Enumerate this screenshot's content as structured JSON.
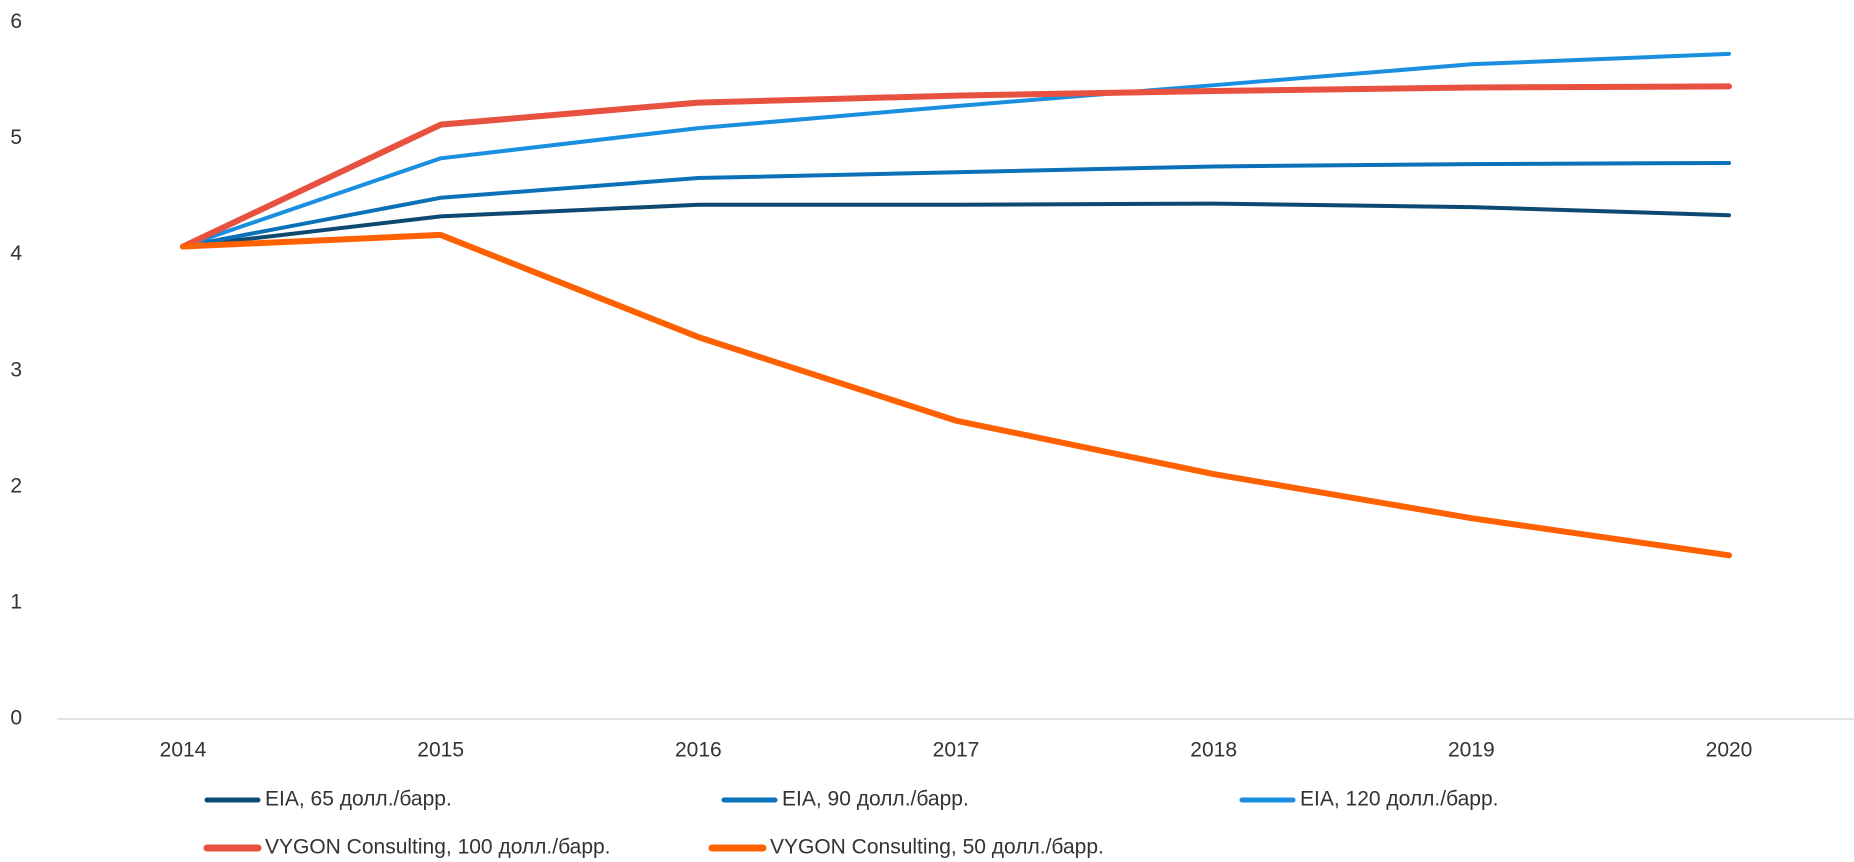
{
  "chart_data": {
    "type": "line",
    "categories": [
      "2014",
      "2015",
      "2016",
      "2017",
      "2018",
      "2019",
      "2020"
    ],
    "series": [
      {
        "name": "EIA, 65 долл./барр.",
        "color": "#0d4a72",
        "width": 4,
        "values": [
          4.07,
          4.33,
          4.43,
          4.43,
          4.44,
          4.41,
          4.34
        ]
      },
      {
        "name": "EIA, 90 долл./барр.",
        "color": "#0a70b8",
        "width": 4,
        "values": [
          4.07,
          4.49,
          4.66,
          4.71,
          4.76,
          4.78,
          4.79
        ]
      },
      {
        "name": "EIA, 120 долл./барр.",
        "color": "#1a8fe0",
        "width": 4,
        "values": [
          4.07,
          4.83,
          5.09,
          5.28,
          5.46,
          5.64,
          5.73
        ]
      },
      {
        "name": "VYGON Consulting, 100 долл./барр.",
        "color": "#e8513f",
        "width": 6,
        "values": [
          4.07,
          5.12,
          5.31,
          5.37,
          5.41,
          5.44,
          5.45
        ]
      },
      {
        "name": "VYGON Consulting, 50 долл./барр.",
        "color": "#ff6000",
        "width": 6,
        "values": [
          4.07,
          4.17,
          3.29,
          2.57,
          2.11,
          1.73,
          1.41
        ]
      }
    ],
    "ylim": [
      0,
      6
    ],
    "yticks": [
      0,
      1,
      2,
      3,
      4,
      5,
      6
    ],
    "grid": false
  }
}
